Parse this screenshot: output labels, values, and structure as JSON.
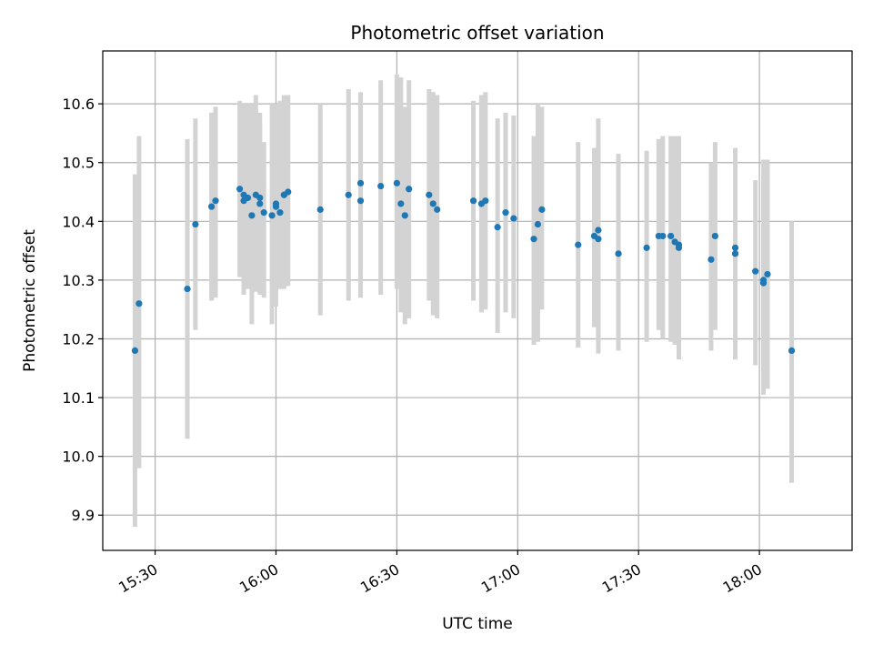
{
  "chart_data": {
    "type": "scatter",
    "title": "Photometric offset variation",
    "xlabel": "UTC time",
    "ylabel": "Photometric offset",
    "x_ticks": [
      "15:30",
      "16:00",
      "16:30",
      "17:00",
      "17:30",
      "18:00"
    ],
    "y_ticks": [
      "9.9",
      "10.0",
      "10.1",
      "10.2",
      "10.3",
      "10.4",
      "10.5",
      "10.6"
    ],
    "xlim": [
      "15:17",
      "18:23"
    ],
    "ylim": [
      9.84,
      10.69
    ],
    "grid": true,
    "marker_color": "#1f77b4",
    "errorbar_color": "#d3d3d3",
    "series": [
      {
        "x": [
          "15:25",
          "15:26",
          "15:38",
          "15:40",
          "15:44",
          "15:45",
          "15:51",
          "15:52",
          "15:52",
          "15:53",
          "15:54",
          "15:55",
          "15:56",
          "15:56",
          "15:57",
          "15:59",
          "16:00",
          "16:00",
          "16:01",
          "16:02",
          "16:02",
          "16:03",
          "16:11",
          "16:18",
          "16:21",
          "16:21",
          "16:26",
          "16:30",
          "16:31",
          "16:32",
          "16:33",
          "16:38",
          "16:39",
          "16:40",
          "16:49",
          "16:51",
          "16:52",
          "16:55",
          "16:57",
          "16:59",
          "17:04",
          "17:05",
          "17:06",
          "17:15",
          "17:19",
          "17:20",
          "17:20",
          "17:25",
          "17:32",
          "17:35",
          "17:36",
          "17:38",
          "17:39",
          "17:40",
          "17:40",
          "17:48",
          "17:49",
          "17:54",
          "17:54",
          "17:59",
          "18:01",
          "18:01",
          "18:02",
          "18:08"
        ],
        "y": [
          10.18,
          10.26,
          10.285,
          10.395,
          10.425,
          10.435,
          10.455,
          10.435,
          10.445,
          10.44,
          10.41,
          10.445,
          10.43,
          10.44,
          10.415,
          10.41,
          10.425,
          10.43,
          10.415,
          10.445,
          10.445,
          10.45,
          10.42,
          10.445,
          10.435,
          10.465,
          10.46,
          10.465,
          10.43,
          10.41,
          10.455,
          10.445,
          10.43,
          10.42,
          10.435,
          10.43,
          10.435,
          10.39,
          10.415,
          10.405,
          10.37,
          10.395,
          10.42,
          10.36,
          10.375,
          10.37,
          10.385,
          10.345,
          10.355,
          10.375,
          10.375,
          10.375,
          10.365,
          10.355,
          10.36,
          10.335,
          10.375,
          10.355,
          10.345,
          10.315,
          10.295,
          10.3,
          10.31,
          10.18
        ],
        "err_low": [
          9.88,
          9.98,
          10.03,
          10.215,
          10.265,
          10.27,
          10.305,
          10.275,
          10.29,
          10.285,
          10.225,
          10.28,
          10.275,
          10.29,
          10.27,
          10.225,
          10.255,
          10.285,
          10.285,
          10.285,
          10.295,
          10.29,
          10.24,
          10.265,
          10.27,
          10.315,
          10.275,
          10.285,
          10.245,
          10.225,
          10.235,
          10.265,
          10.24,
          10.235,
          10.265,
          10.245,
          10.25,
          10.21,
          10.245,
          10.235,
          10.19,
          10.195,
          10.25,
          10.185,
          10.22,
          10.175,
          10.195,
          10.18,
          10.195,
          10.215,
          10.2,
          10.195,
          10.19,
          10.165,
          10.195,
          10.18,
          10.215,
          10.185,
          10.165,
          10.155,
          10.12,
          10.105,
          10.115,
          9.955
        ],
        "err_high": [
          10.48,
          10.545,
          10.54,
          10.575,
          10.585,
          10.595,
          10.605,
          10.595,
          10.6,
          10.6,
          10.6,
          10.615,
          10.585,
          10.565,
          10.535,
          10.6,
          10.59,
          10.6,
          10.605,
          10.615,
          10.615,
          10.615,
          10.6,
          10.625,
          10.62,
          10.615,
          10.64,
          10.65,
          10.645,
          10.595,
          10.64,
          10.625,
          10.62,
          10.615,
          10.605,
          10.615,
          10.62,
          10.575,
          10.585,
          10.58,
          10.545,
          10.6,
          10.595,
          10.535,
          10.525,
          10.525,
          10.575,
          10.515,
          10.52,
          10.54,
          10.545,
          10.545,
          10.545,
          10.545,
          10.525,
          10.5,
          10.535,
          10.525,
          10.52,
          10.47,
          10.465,
          10.505,
          10.505,
          10.4
        ]
      }
    ]
  }
}
